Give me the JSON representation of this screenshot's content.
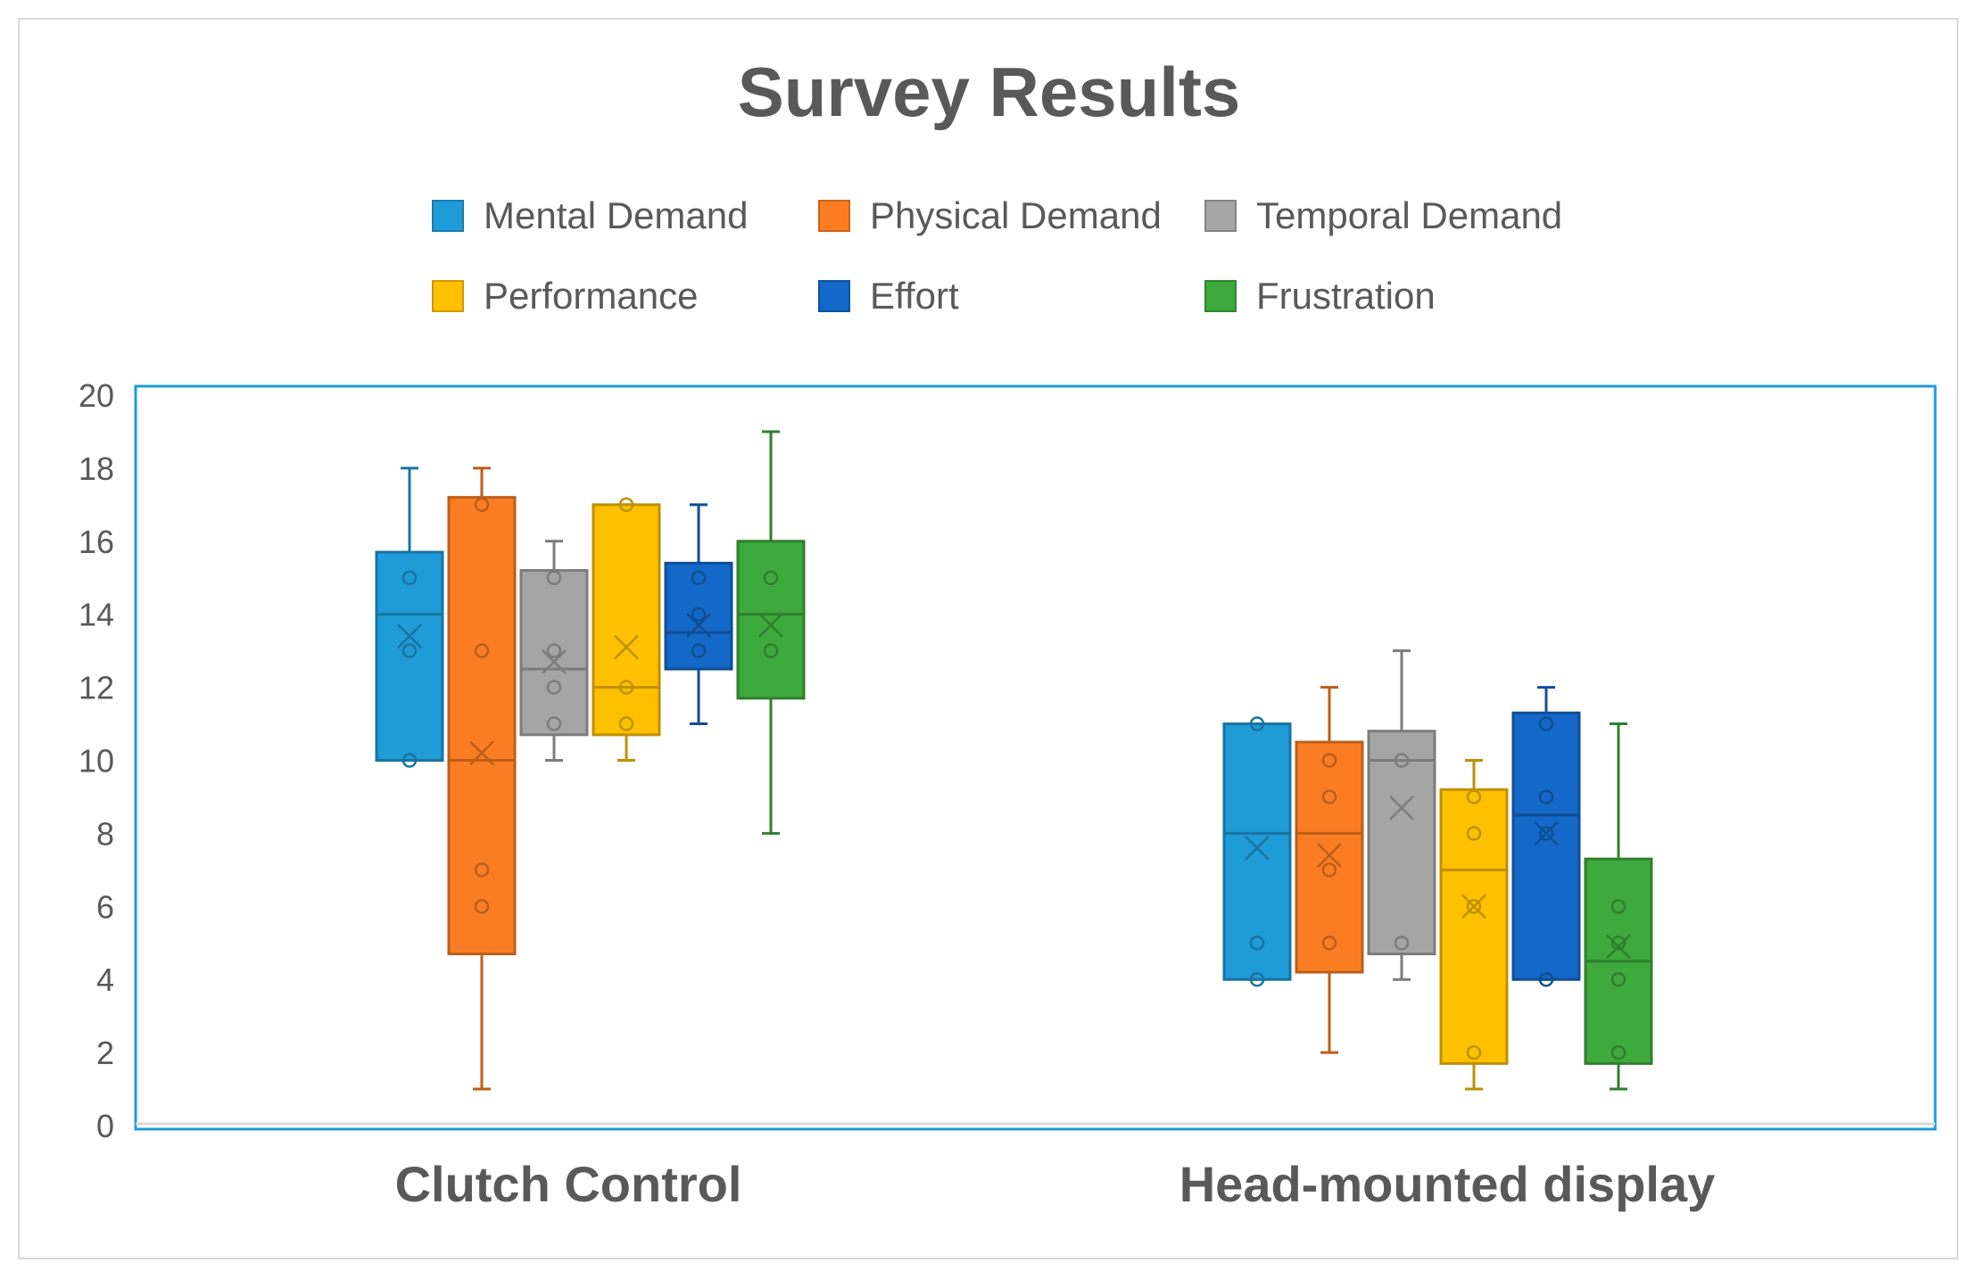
{
  "chart_data": {
    "type": "boxplot",
    "title": "Survey Results",
    "xlabel": "",
    "ylabel": "",
    "ylim": [
      0,
      20
    ],
    "yticks": [
      0,
      2,
      4,
      6,
      8,
      10,
      12,
      14,
      16,
      18,
      20
    ],
    "legend_position": "top",
    "categories": [
      "Clutch Control",
      "Head-mounted display"
    ],
    "series": [
      {
        "name": "Mental Demand",
        "color": "#1f9bd7",
        "boxes": [
          {
            "min": 10,
            "q1": 10,
            "median": 14,
            "q3": 15.7,
            "max": 18,
            "mean": 13.4,
            "points": [
              10,
              13,
              15
            ]
          },
          {
            "min": 4,
            "q1": 4,
            "median": 8,
            "q3": 11,
            "max": 11,
            "mean": 7.6,
            "points": [
              4,
              5,
              11
            ]
          }
        ]
      },
      {
        "name": "Physical Demand",
        "color": "#fb7d23",
        "boxes": [
          {
            "min": 1,
            "q1": 4.7,
            "median": 10,
            "q3": 17.2,
            "max": 18,
            "mean": 10.2,
            "points": [
              6,
              7,
              13,
              17
            ]
          },
          {
            "min": 2,
            "q1": 4.2,
            "median": 8,
            "q3": 10.5,
            "max": 12,
            "mean": 7.4,
            "points": [
              5,
              7,
              9,
              10
            ]
          }
        ]
      },
      {
        "name": "Temporal Demand",
        "color": "#a5a5a5",
        "boxes": [
          {
            "min": 10,
            "q1": 10.7,
            "median": 12.5,
            "q3": 15.2,
            "max": 16,
            "mean": 12.7,
            "points": [
              11,
              12,
              13,
              15
            ]
          },
          {
            "min": 4,
            "q1": 4.7,
            "median": 10,
            "q3": 10.8,
            "max": 13,
            "mean": 8.7,
            "points": [
              5,
              10
            ]
          }
        ]
      },
      {
        "name": "Performance",
        "color": "#ffc000",
        "boxes": [
          {
            "min": 10,
            "q1": 10.7,
            "median": 12,
            "q3": 17,
            "max": 17,
            "mean": 13.1,
            "points": [
              11,
              12,
              17
            ]
          },
          {
            "min": 1,
            "q1": 1.7,
            "median": 7,
            "q3": 9.2,
            "max": 10,
            "mean": 6,
            "points": [
              2,
              6,
              8,
              9
            ]
          }
        ]
      },
      {
        "name": "Effort",
        "color": "#1468c7",
        "boxes": [
          {
            "min": 11,
            "q1": 12.5,
            "median": 13.5,
            "q3": 15.4,
            "max": 17,
            "mean": 13.7,
            "points": [
              13,
              14,
              15
            ]
          },
          {
            "min": 4,
            "q1": 4,
            "median": 8.5,
            "q3": 11.3,
            "max": 12,
            "mean": 8,
            "points": [
              4,
              8,
              9,
              11
            ]
          }
        ]
      },
      {
        "name": "Frustration",
        "color": "#3ea93d",
        "boxes": [
          {
            "min": 8,
            "q1": 11.7,
            "median": 14,
            "q3": 16,
            "max": 19,
            "mean": 13.7,
            "points": [
              13,
              15
            ]
          },
          {
            "min": 1,
            "q1": 1.7,
            "median": 4.5,
            "q3": 7.3,
            "max": 11,
            "mean": 4.9,
            "points": [
              2,
              4,
              5,
              6
            ]
          }
        ]
      }
    ]
  }
}
